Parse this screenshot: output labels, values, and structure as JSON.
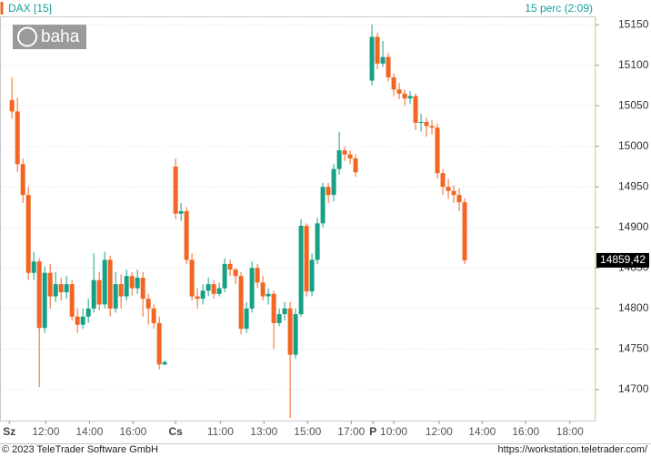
{
  "chart_data": {
    "type": "candlestick",
    "title": "DAX [15]",
    "subtitle": "15 perc (2:09)",
    "logo": "baha",
    "footer_left": "© 2023 TeleTrader Software GmbH",
    "footer_right": "https://workstation.teletrader.com/",
    "up_color": "#16a085",
    "down_color": "#f26522",
    "grid": true,
    "x": [
      0,
      1,
      2,
      3,
      4,
      5,
      6,
      7,
      8,
      9,
      10,
      11,
      12,
      13,
      14,
      15,
      16,
      17,
      18,
      19,
      20,
      21,
      22,
      23,
      24,
      25,
      26,
      27,
      28,
      30,
      31,
      32,
      33,
      34,
      35,
      36,
      37,
      38,
      39,
      40,
      41,
      42,
      43,
      44,
      45,
      46,
      47,
      48,
      49,
      50,
      51,
      52,
      53,
      54,
      55,
      56,
      57,
      58,
      59,
      60,
      61,
      62,
      63,
      66,
      67,
      68,
      69,
      70,
      71,
      72,
      73,
      74,
      75,
      76,
      77,
      78,
      79,
      80,
      81,
      82,
      83
    ],
    "open": [
      15057,
      15043,
      14978,
      14940,
      14844,
      14858,
      14776,
      14844,
      14815,
      14830,
      14820,
      14830,
      14790,
      14780,
      14790,
      14800,
      14835,
      14805,
      14860,
      14800,
      14830,
      14815,
      14840,
      14825,
      14838,
      14812,
      14800,
      14782,
      14731,
      14975,
      14917,
      14920,
      14860,
      14815,
      14812,
      14822,
      14830,
      14818,
      14825,
      14855,
      14848,
      14840,
      14775,
      14800,
      14850,
      14832,
      14815,
      14818,
      14782,
      14793,
      14800,
      14743,
      14793,
      14902,
      14821,
      14860,
      14905,
      14950,
      14940,
      14972,
      14995,
      14990,
      14985,
      15081,
      15135,
      15102,
      15110,
      15085,
      15070,
      15065,
      15059,
      15062,
      15029,
      15030,
      15025,
      15023,
      14967,
      14950,
      14945,
      14940,
      14931
    ],
    "high": [
      15085,
      15060,
      14985,
      14950,
      14870,
      14862,
      14852,
      14855,
      14845,
      14838,
      14840,
      14835,
      14800,
      14800,
      14812,
      14868,
      14845,
      14870,
      14865,
      14845,
      14842,
      14848,
      14845,
      14848,
      14845,
      14818,
      14805,
      14790,
      14736,
      14985,
      14930,
      14925,
      14868,
      14825,
      14830,
      14838,
      14835,
      14832,
      14862,
      14860,
      14850,
      14845,
      14808,
      14858,
      14855,
      14840,
      14825,
      14822,
      14800,
      14808,
      14808,
      14800,
      14910,
      14905,
      14868,
      14912,
      14955,
      14955,
      14978,
      15018,
      15000,
      14995,
      14990,
      15150,
      15140,
      15130,
      15115,
      15090,
      15078,
      15070,
      15068,
      15065,
      15040,
      15035,
      15032,
      15028,
      14972,
      14960,
      14952,
      14948,
      14936
    ],
    "low": [
      15034,
      14968,
      14930,
      14835,
      14835,
      14703,
      14770,
      14800,
      14808,
      14810,
      14812,
      14785,
      14770,
      14775,
      14782,
      14795,
      14798,
      14800,
      14790,
      14795,
      14800,
      14810,
      14816,
      14818,
      14790,
      14780,
      14775,
      14725,
      14730,
      14910,
      14908,
      14855,
      14810,
      14800,
      14805,
      14815,
      14812,
      14815,
      14820,
      14840,
      14830,
      14768,
      14770,
      14795,
      14825,
      14810,
      14805,
      14750,
      14778,
      14785,
      14665,
      14738,
      14790,
      14815,
      14815,
      14855,
      14900,
      14930,
      14932,
      14965,
      14982,
      14978,
      14962,
      15075,
      15095,
      15098,
      15080,
      15062,
      15058,
      15050,
      15052,
      15020,
      15018,
      15012,
      15015,
      14960,
      14940,
      14935,
      14930,
      14920,
      14855
    ],
    "close": [
      15043,
      14978,
      14940,
      14844,
      14858,
      14776,
      14844,
      14815,
      14830,
      14820,
      14830,
      14790,
      14780,
      14790,
      14800,
      14835,
      14805,
      14860,
      14800,
      14830,
      14815,
      14840,
      14825,
      14838,
      14812,
      14800,
      14782,
      14731,
      14734,
      14917,
      14920,
      14860,
      14815,
      14812,
      14822,
      14830,
      14818,
      14825,
      14855,
      14848,
      14840,
      14775,
      14800,
      14850,
      14832,
      14815,
      14818,
      14782,
      14793,
      14800,
      14743,
      14793,
      14902,
      14821,
      14860,
      14905,
      14950,
      14940,
      14972,
      14995,
      14990,
      14985,
      14968,
      15135,
      15102,
      15110,
      15085,
      15070,
      15065,
      15059,
      15062,
      15029,
      15030,
      15025,
      15023,
      14967,
      14950,
      14945,
      14940,
      14931,
      14859.42
    ],
    "last_price": {
      "value": 14859.42,
      "label": "14859,42"
    },
    "xlim": [
      -2.2,
      107
    ],
    "xticks": [
      {
        "value": -0.5,
        "label": "Sz"
      },
      {
        "value": 6.2,
        "label": "12:00"
      },
      {
        "value": 14.2,
        "label": "14:00"
      },
      {
        "value": 22.2,
        "label": "16:00"
      },
      {
        "value": 30,
        "label": "Cs"
      },
      {
        "value": 38.2,
        "label": "11:00"
      },
      {
        "value": 46.2,
        "label": "13:00"
      },
      {
        "value": 54.2,
        "label": "15:00"
      },
      {
        "value": 62.2,
        "label": "17:00"
      },
      {
        "value": 66.2,
        "label": "P"
      },
      {
        "value": 70,
        "label": "10:00"
      },
      {
        "value": 78.3,
        "label": "12:00"
      },
      {
        "value": 86.2,
        "label": "14:00"
      },
      {
        "value": 94.2,
        "label": "16:00"
      },
      {
        "value": 102.3,
        "label": "18:00"
      }
    ],
    "ylim": [
      14661.8,
      15160.2
    ],
    "yticks": [
      14700,
      14750,
      14800,
      14850,
      14900,
      14950,
      15000,
      15050,
      15100,
      15150
    ]
  }
}
